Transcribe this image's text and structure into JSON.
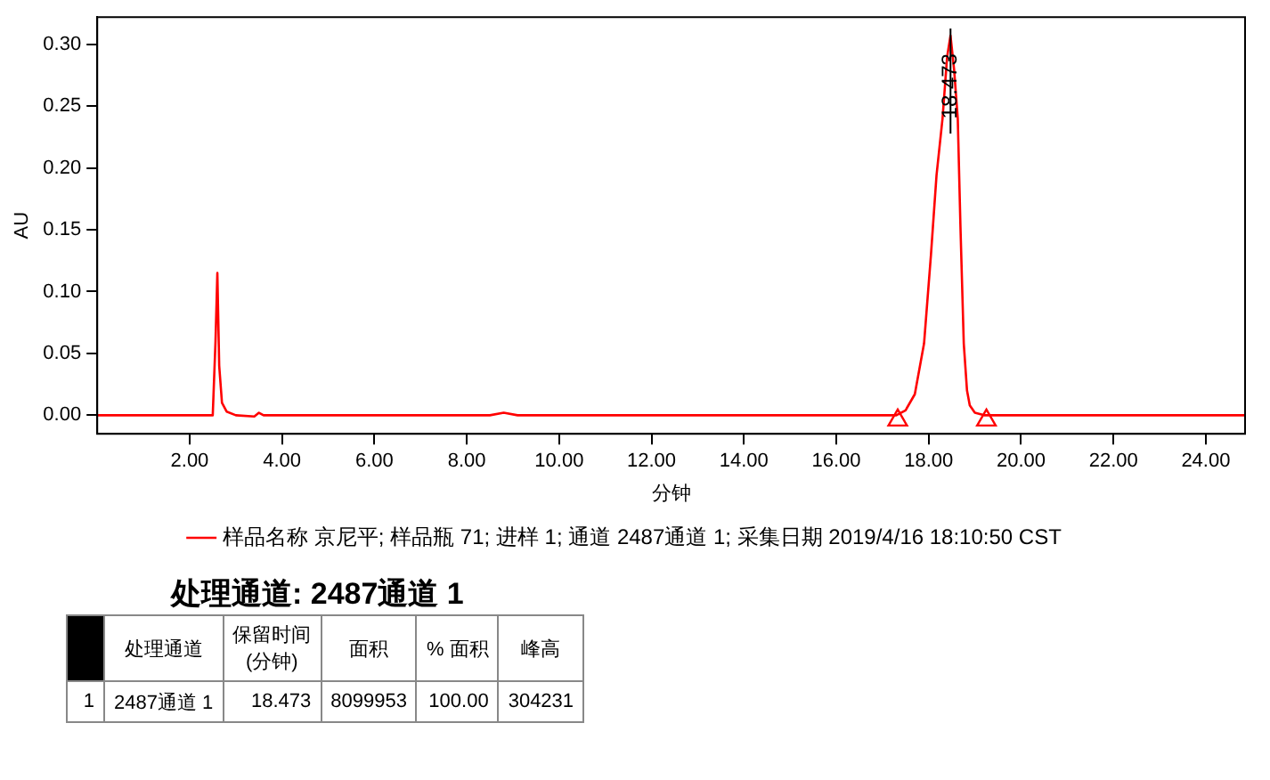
{
  "chart_data": {
    "type": "line",
    "xlabel": "分钟",
    "ylabel": "AU",
    "xlim": [
      0,
      24.85
    ],
    "xticks": [
      {
        "value": 2,
        "label": "2.00"
      },
      {
        "value": 4,
        "label": "4.00"
      },
      {
        "value": 6,
        "label": "6.00"
      },
      {
        "value": 8,
        "label": "8.00"
      },
      {
        "value": 10,
        "label": "10.00"
      },
      {
        "value": 12,
        "label": "12.00"
      },
      {
        "value": 14,
        "label": "14.00"
      },
      {
        "value": 16,
        "label": "16.00"
      },
      {
        "value": 18,
        "label": "18.00"
      },
      {
        "value": 20,
        "label": "20.00"
      },
      {
        "value": 22,
        "label": "22.00"
      },
      {
        "value": 24,
        "label": "24.00"
      }
    ],
    "ylim": [
      -0.015,
      0.322
    ],
    "yticks": [
      {
        "value": 0,
        "label": "0.00"
      },
      {
        "value": 0.05,
        "label": "0.05"
      },
      {
        "value": 0.1,
        "label": "0.10"
      },
      {
        "value": 0.15,
        "label": "0.15"
      },
      {
        "value": 0.2,
        "label": "0.20"
      },
      {
        "value": 0.25,
        "label": "0.25"
      },
      {
        "value": 0.3,
        "label": "0.30"
      }
    ],
    "grid": false,
    "legend": "bottom",
    "marker": "none",
    "line_style": "solid",
    "series": [
      {
        "name": "样品名称 京尼平; 样品瓶 71; 进样 1; 通道 2487通道 1; 采集日期 2019/4/16 18:10:50 CST",
        "color": "#ff0000",
        "x": [
          0,
          2.5,
          2.56,
          2.6,
          2.64,
          2.7,
          2.8,
          3.0,
          3.4,
          3.5,
          3.6,
          8.5,
          8.8,
          9.1,
          17.3,
          17.5,
          17.7,
          17.9,
          18.05,
          18.17,
          18.3,
          18.4,
          18.473,
          18.55,
          18.63,
          18.69,
          18.76,
          18.83,
          18.89,
          19.0,
          19.2,
          24.85
        ],
        "values": [
          0,
          0,
          0.06,
          0.115,
          0.04,
          0.01,
          0.003,
          0,
          -0.001,
          0.002,
          0,
          0,
          0.002,
          0,
          0,
          0.004,
          0.017,
          0.058,
          0.13,
          0.194,
          0.24,
          0.29,
          0.307,
          0.28,
          0.24,
          0.15,
          0.058,
          0.02,
          0.008,
          0.002,
          0,
          0
        ]
      },
      {
        "type": "scatter",
        "marker": "triangle",
        "color": "#ff0000",
        "x": [
          17.33,
          19.25
        ],
        "values": [
          -0.004,
          -0.004
        ]
      }
    ],
    "annotations": [
      {
        "text": "18.473",
        "x": 18.473,
        "y": 0.307
      },
      "处理通道: 2487通道 1",
      "处理通道",
      "保留时间\n(分钟)",
      "面积",
      "% 面积",
      "峰高",
      "1",
      "2487通道 1",
      "18.473",
      "8099953",
      "100.00",
      "304231"
    ]
  }
}
